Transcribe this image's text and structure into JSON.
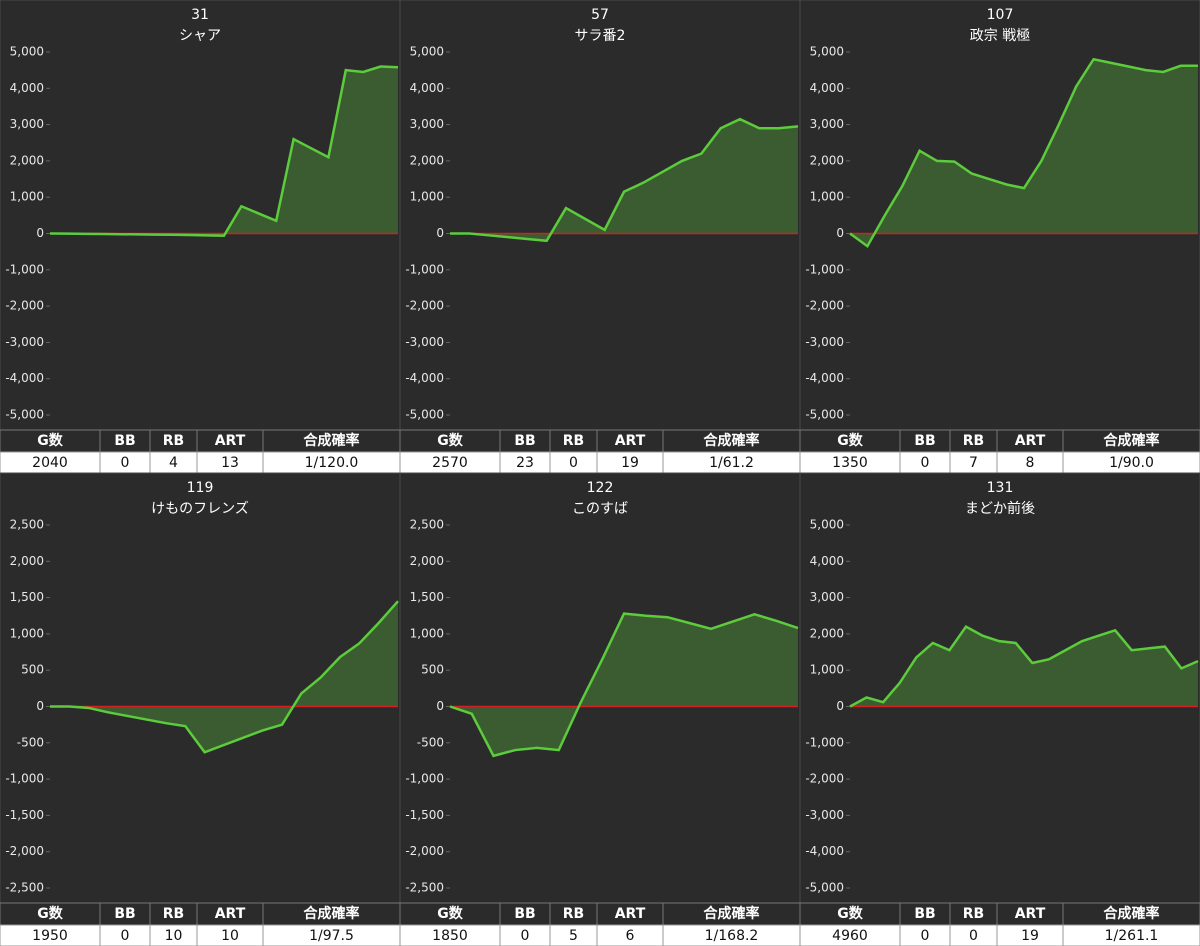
{
  "chart_data": [
    {
      "type": "line",
      "title": "31",
      "subtitle": "シャア",
      "color": "#5ccc3c",
      "values": [
        0,
        -5,
        -10,
        -15,
        -20,
        -25,
        -30,
        -35,
        -40,
        -50,
        -60,
        750,
        550,
        350,
        2600,
        2350,
        2100,
        4500,
        4450,
        4600,
        4580
      ],
      "ylim": [
        -5000,
        5000
      ],
      "yticks": [
        {
          "value": -5000,
          "label": "-5,000"
        },
        {
          "value": -4000,
          "label": "-4,000"
        },
        {
          "value": -3000,
          "label": "-3,000"
        },
        {
          "value": -2000,
          "label": "-2,000"
        },
        {
          "value": -1000,
          "label": "-1,000"
        },
        0,
        {
          "value": 1000,
          "label": "1,000"
        },
        {
          "value": 2000,
          "label": "2,000"
        },
        {
          "value": 3000,
          "label": "3,000"
        },
        {
          "value": 4000,
          "label": "4,000"
        },
        {
          "value": 5000,
          "label": "5,000"
        }
      ],
      "table": {
        "columns": [
          "G数",
          "BB",
          "RB",
          "ART",
          "合成確率"
        ],
        "row": [
          2040,
          0,
          4,
          13,
          "1/120.0"
        ]
      }
    },
    {
      "type": "line",
      "title": "57",
      "subtitle": "サラ番2",
      "color": "#5ccc3c",
      "values": [
        0,
        0,
        -50,
        -100,
        -150,
        -200,
        700,
        400,
        100,
        1150,
        1400,
        1700,
        2000,
        2200,
        2900,
        3150,
        2900,
        2900,
        2950
      ],
      "ylim": [
        -5000,
        5000
      ],
      "yticks": [
        {
          "value": -5000,
          "label": "-5,000"
        },
        {
          "value": -4000,
          "label": "-4,000"
        },
        {
          "value": -3000,
          "label": "-3,000"
        },
        {
          "value": -2000,
          "label": "-2,000"
        },
        {
          "value": -1000,
          "label": "-1,000"
        },
        0,
        {
          "value": 1000,
          "label": "1,000"
        },
        {
          "value": 2000,
          "label": "2,000"
        },
        {
          "value": 3000,
          "label": "3,000"
        },
        {
          "value": 4000,
          "label": "4,000"
        },
        {
          "value": 5000,
          "label": "5,000"
        }
      ],
      "table": {
        "columns": [
          "G数",
          "BB",
          "RB",
          "ART",
          "合成確率"
        ],
        "row": [
          2570,
          23,
          0,
          19,
          "1/61.2"
        ]
      }
    },
    {
      "type": "line",
      "title": "107",
      "subtitle": "政宗 戦極",
      "color": "#5ccc3c",
      "values": [
        0,
        -350,
        500,
        1300,
        2280,
        2000,
        1980,
        1650,
        1500,
        1350,
        1250,
        2000,
        3000,
        4050,
        4800,
        4700,
        4600,
        4500,
        4450,
        4620,
        4620
      ],
      "ylim": [
        -5000,
        5000
      ],
      "yticks": [
        {
          "value": -5000,
          "label": "-5,000"
        },
        {
          "value": -4000,
          "label": "-4,000"
        },
        {
          "value": -3000,
          "label": "-3,000"
        },
        {
          "value": -2000,
          "label": "-2,000"
        },
        {
          "value": -1000,
          "label": "-1,000"
        },
        0,
        {
          "value": 1000,
          "label": "1,000"
        },
        {
          "value": 2000,
          "label": "2,000"
        },
        {
          "value": 3000,
          "label": "3,000"
        },
        {
          "value": 4000,
          "label": "4,000"
        },
        {
          "value": 5000,
          "label": "5,000"
        }
      ],
      "table": {
        "columns": [
          "G数",
          "BB",
          "RB",
          "ART",
          "合成確率"
        ],
        "row": [
          1350,
          0,
          7,
          8,
          "1/90.0"
        ]
      }
    },
    {
      "type": "line",
      "title": "119",
      "subtitle": "けものフレンズ",
      "color": "#5ccc3c",
      "values": [
        0,
        0,
        -20,
        -80,
        -130,
        -180,
        -230,
        -270,
        -630,
        -530,
        -430,
        -330,
        -250,
        180,
        400,
        680,
        870,
        1150,
        1450
      ],
      "ylim": [
        -2500,
        2500
      ],
      "yticks": [
        {
          "value": -2500,
          "label": "-2,500"
        },
        {
          "value": -2000,
          "label": "-2,000"
        },
        {
          "value": -1500,
          "label": "-1,500"
        },
        {
          "value": -1000,
          "label": "-1,000"
        },
        -500,
        0,
        500,
        {
          "value": 1000,
          "label": "1,000"
        },
        {
          "value": 1500,
          "label": "1,500"
        },
        {
          "value": 2000,
          "label": "2,000"
        },
        {
          "value": 2500,
          "label": "2,500"
        }
      ],
      "table": {
        "columns": [
          "G数",
          "BB",
          "RB",
          "ART",
          "合成確率"
        ],
        "row": [
          1950,
          0,
          10,
          10,
          "1/97.5"
        ]
      }
    },
    {
      "type": "line",
      "title": "122",
      "subtitle": "このすば",
      "color": "#5ccc3c",
      "values": [
        0,
        -100,
        -680,
        -600,
        -570,
        -600,
        50,
        650,
        1280,
        1250,
        1230,
        1150,
        1070,
        1170,
        1270,
        1180,
        1080
      ],
      "ylim": [
        -2500,
        2500
      ],
      "yticks": [
        {
          "value": -2500,
          "label": "-2,500"
        },
        {
          "value": -2000,
          "label": "-2,000"
        },
        {
          "value": -1500,
          "label": "-1,500"
        },
        {
          "value": -1000,
          "label": "-1,000"
        },
        -500,
        0,
        500,
        {
          "value": 1000,
          "label": "1,000"
        },
        {
          "value": 1500,
          "label": "1,500"
        },
        {
          "value": 2000,
          "label": "2,000"
        },
        {
          "value": 2500,
          "label": "2,500"
        }
      ],
      "table": {
        "columns": [
          "G数",
          "BB",
          "RB",
          "ART",
          "合成確率"
        ],
        "row": [
          1850,
          0,
          5,
          6,
          "1/168.2"
        ]
      }
    },
    {
      "type": "line",
      "title": "131",
      "subtitle": "まどか前後",
      "color": "#5ccc3c",
      "values": [
        0,
        250,
        120,
        650,
        1350,
        1750,
        1550,
        2200,
        1950,
        1800,
        1750,
        1200,
        1300,
        1550,
        1800,
        1950,
        2100,
        1550,
        1600,
        1650,
        1050,
        1250
      ],
      "ylim": [
        -5000,
        5000
      ],
      "yticks": [
        {
          "value": -5000,
          "label": "-5,000"
        },
        {
          "value": -4000,
          "label": "-4,000"
        },
        {
          "value": -3000,
          "label": "-3,000"
        },
        {
          "value": -2000,
          "label": "-2,000"
        },
        {
          "value": -1000,
          "label": "-1,000"
        },
        0,
        {
          "value": 1000,
          "label": "1,000"
        },
        {
          "value": 2000,
          "label": "2,000"
        },
        {
          "value": 3000,
          "label": "3,000"
        },
        {
          "value": 4000,
          "label": "4,000"
        },
        {
          "value": 5000,
          "label": "5,000"
        }
      ],
      "table": {
        "columns": [
          "G数",
          "BB",
          "RB",
          "ART",
          "合成確率"
        ],
        "row": [
          4960,
          0,
          0,
          19,
          "1/261.1"
        ]
      }
    }
  ]
}
